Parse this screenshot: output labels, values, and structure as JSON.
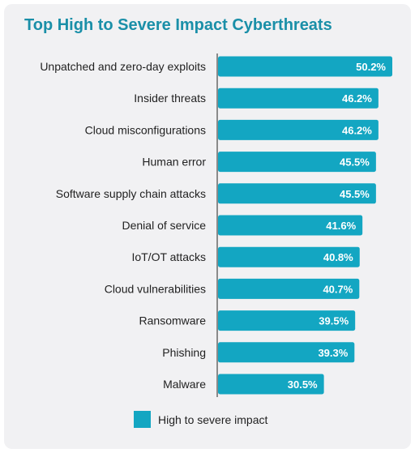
{
  "chart_data": {
    "type": "bar",
    "orientation": "horizontal",
    "title": "Top High to Severe Impact Cyberthreats",
    "categories": [
      "Unpatched and zero-day exploits",
      "Insider threats",
      "Cloud misconfigurations",
      "Human error",
      "Software supply chain attacks",
      "Denial of service",
      "IoT/OT attacks",
      "Cloud vulnerabilities",
      "Ransomware",
      "Phishing",
      "Malware"
    ],
    "series": [
      {
        "name": "High to severe impact",
        "values": [
          50.2,
          46.2,
          46.2,
          45.5,
          45.5,
          41.6,
          40.8,
          40.7,
          39.5,
          39.3,
          30.5
        ]
      }
    ],
    "data_labels": [
      "50.2%",
      "46.2%",
      "46.2%",
      "45.5%",
      "45.5%",
      "41.6%",
      "40.8%",
      "40.7%",
      "39.5%",
      "39.3%",
      "30.5%"
    ],
    "xlim": [
      0,
      50.2
    ],
    "grid": false,
    "legend_position": "bottom-center",
    "colors": {
      "bar": "#13a6c2",
      "title": "#1a8fa8",
      "background": "#f1f1f3",
      "axis": "#222222",
      "text": "#222222",
      "data_label": "#ffffff"
    }
  },
  "legend": {
    "label": "High to severe impact"
  }
}
